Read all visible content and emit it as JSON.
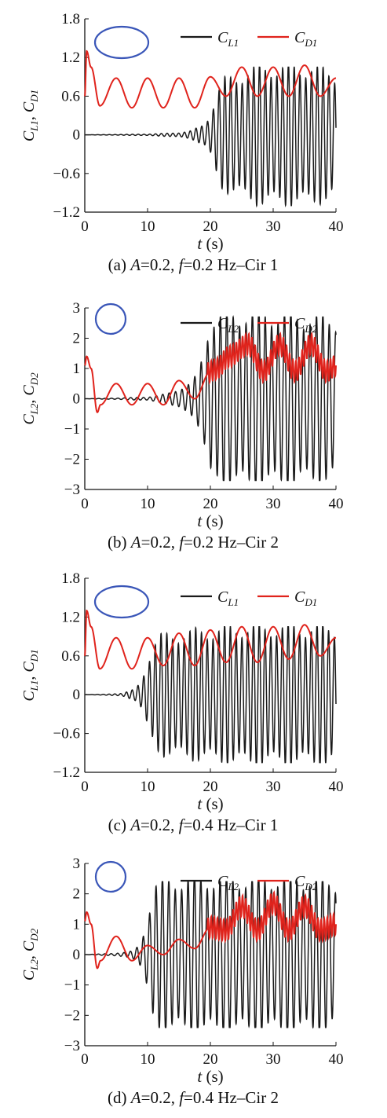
{
  "chart_data": [
    {
      "type": "line",
      "panel": "a",
      "caption": "(a)  A=0.2,  f=0.2 Hz–Cir 1",
      "caption_parts": {
        "label": "(a)",
        "a_var": "A",
        "a_val": "=0.2,",
        "f_var": "f",
        "f_val": "=0.2 Hz–Cir 1"
      },
      "xlabel": {
        "var": "t",
        "unit": " (s)"
      },
      "ylabel": {
        "lift": "C",
        "lift_sub": "L1",
        "drag": "C",
        "drag_sub": "D1"
      },
      "xlim": [
        0,
        40
      ],
      "ylim": [
        -1.2,
        1.8
      ],
      "xticks": [
        "0",
        "10",
        "20",
        "30",
        "40"
      ],
      "yticks": [
        "−1.2",
        "−0.6",
        "0",
        "0.6",
        "1.2",
        "1.8"
      ],
      "ytick_values": [
        -1.2,
        -0.6,
        0,
        0.6,
        1.2,
        1.8
      ],
      "cylinder_shape": "ellipse",
      "series": [
        {
          "name": "C",
          "name_sub": "L1",
          "color": "#1a1a1a",
          "x": [
            0,
            5,
            10,
            15,
            17,
            19,
            20,
            21,
            22,
            24,
            26,
            28,
            30,
            32,
            34,
            36,
            38,
            40
          ],
          "amplitude": [
            0,
            0.005,
            0.01,
            0.03,
            0.06,
            0.15,
            0.3,
            0.6,
            0.8,
            0.85,
            0.95,
            1.0,
            1.0,
            1.0,
            1.0,
            1.0,
            0.95,
            0.9
          ],
          "min_observed": -1.1,
          "max_observed": 1.05
        },
        {
          "name": "C",
          "name_sub": "D1",
          "color": "#e0231c",
          "x": [
            0.0,
            0.3,
            1.0,
            2.4,
            5.0,
            7.5,
            10.0,
            12.5,
            15.0,
            17.5,
            20.0,
            22.5,
            25.0,
            27.5,
            30.0,
            32.5,
            35.0,
            37.5,
            40.0
          ],
          "values": [
            0.6,
            1.3,
            1.05,
            0.45,
            0.88,
            0.42,
            0.88,
            0.42,
            0.88,
            0.42,
            0.9,
            0.6,
            1.05,
            0.6,
            1.05,
            0.6,
            1.08,
            0.6,
            0.88
          ]
        }
      ]
    },
    {
      "type": "line",
      "panel": "b",
      "caption": "(b)  A=0.2,  f=0.2 Hz–Cir 2",
      "caption_parts": {
        "label": "(b)",
        "a_var": "A",
        "a_val": "=0.2,",
        "f_var": "f",
        "f_val": "=0.2 Hz–Cir 2"
      },
      "xlabel": {
        "var": "t",
        "unit": " (s)"
      },
      "ylabel": {
        "lift": "C",
        "lift_sub": "L2",
        "drag": "C",
        "drag_sub": "D2"
      },
      "xlim": [
        0,
        40
      ],
      "ylim": [
        -3,
        3
      ],
      "xticks": [
        "0",
        "10",
        "20",
        "30",
        "40"
      ],
      "yticks": [
        "−3",
        "−2",
        "−1",
        "0",
        "1",
        "2",
        "3"
      ],
      "ytick_values": [
        -3,
        -2,
        -1,
        0,
        1,
        2,
        3
      ],
      "cylinder_shape": "circle",
      "series": [
        {
          "name": "C",
          "name_sub": "L2",
          "color": "#1a1a1a",
          "x": [
            0,
            5,
            10,
            13,
            15,
            17,
            18,
            19,
            20,
            22,
            25,
            30,
            35,
            40
          ],
          "amplitude": [
            0,
            0.02,
            0.05,
            0.15,
            0.3,
            0.5,
            0.8,
            1.5,
            2.6,
            2.6,
            2.7,
            2.7,
            2.6,
            2.5
          ],
          "min_observed": -2.7,
          "max_observed": 2.7
        },
        {
          "name": "C",
          "name_sub": "D2",
          "color": "#e0231c",
          "x": [
            0.0,
            0.3,
            1.0,
            2.0,
            2.5,
            5.0,
            7.5,
            10.0,
            12.5,
            15.0,
            17.5,
            20.0,
            21.0,
            23.0,
            26.0,
            28.5,
            31.0,
            33.5,
            36.0,
            38.5,
            40.0
          ],
          "values": [
            1.1,
            1.4,
            1.0,
            -0.45,
            -0.2,
            0.5,
            -0.2,
            0.5,
            -0.2,
            0.6,
            0.0,
            0.9,
            1.0,
            1.4,
            1.8,
            0.9,
            1.8,
            0.9,
            1.8,
            0.9,
            1.1
          ]
        }
      ]
    },
    {
      "type": "line",
      "panel": "c",
      "caption": "(c)  A=0.2,  f=0.4 Hz–Cir 1",
      "caption_parts": {
        "label": "(c)",
        "a_var": "A",
        "a_val": "=0.2,",
        "f_var": "f",
        "f_val": "=0.4 Hz–Cir 1"
      },
      "xlabel": {
        "var": "t",
        "unit": " (s)"
      },
      "ylabel": {
        "lift": "C",
        "lift_sub": "L1",
        "drag": "C",
        "drag_sub": "D1"
      },
      "xlim": [
        0,
        40
      ],
      "ylim": [
        -1.2,
        1.8
      ],
      "xticks": [
        "0",
        "10",
        "20",
        "30",
        "40"
      ],
      "yticks": [
        "−1.2",
        "−0.6",
        "0",
        "0.6",
        "1.2",
        "1.8"
      ],
      "ytick_values": [
        -1.2,
        -0.6,
        0,
        0.6,
        1.2,
        1.8
      ],
      "cylinder_shape": "ellipse",
      "series": [
        {
          "name": "C",
          "name_sub": "L1",
          "color": "#1a1a1a",
          "x": [
            0,
            3,
            6,
            8,
            9,
            10,
            11,
            12,
            15,
            20,
            25,
            30,
            35,
            40
          ],
          "amplitude": [
            0,
            0.005,
            0.02,
            0.08,
            0.2,
            0.5,
            0.75,
            0.85,
            0.9,
            0.95,
            1.0,
            1.0,
            1.0,
            1.0
          ],
          "min_observed": -1.05,
          "max_observed": 1.05
        },
        {
          "name": "C",
          "name_sub": "D1",
          "color": "#e0231c",
          "x": [
            0.0,
            0.3,
            1.0,
            2.4,
            5.0,
            7.5,
            10.0,
            12.5,
            15.0,
            17.5,
            20.0,
            22.5,
            25.0,
            27.5,
            30.0,
            32.5,
            35.0,
            37.5,
            40.0
          ],
          "values": [
            0.6,
            1.3,
            1.05,
            0.4,
            0.88,
            0.4,
            0.88,
            0.45,
            0.95,
            0.45,
            1.0,
            0.5,
            1.05,
            0.5,
            1.05,
            0.55,
            1.08,
            0.6,
            0.88
          ]
        }
      ]
    },
    {
      "type": "line",
      "panel": "d",
      "caption": "(d)  A=0.2,  f=0.4 Hz–Cir 2",
      "caption_parts": {
        "label": "(d)",
        "a_var": "A",
        "a_val": "=0.2,",
        "f_var": "f",
        "f_val": "=0.4 Hz–Cir 2"
      },
      "xlabel": {
        "var": "t",
        "unit": " (s)"
      },
      "ylabel": {
        "lift": "C",
        "lift_sub": "L2",
        "drag": "C",
        "drag_sub": "D2"
      },
      "xlim": [
        0,
        40
      ],
      "ylim": [
        -3,
        3
      ],
      "xticks": [
        "0",
        "10",
        "20",
        "30",
        "40"
      ],
      "yticks": [
        "−3",
        "−2",
        "−1",
        "0",
        "1",
        "2",
        "3"
      ],
      "ytick_values": [
        -3,
        -2,
        -1,
        0,
        1,
        2,
        3
      ],
      "cylinder_shape": "circle",
      "series": [
        {
          "name": "C",
          "name_sub": "L2",
          "color": "#1a1a1a",
          "x": [
            0,
            4,
            7,
            8,
            9,
            10,
            11,
            13,
            16,
            20,
            25,
            30,
            35,
            40
          ],
          "amplitude": [
            0,
            0.03,
            0.08,
            0.15,
            0.4,
            1.2,
            2.2,
            2.3,
            2.4,
            2.4,
            2.4,
            2.4,
            2.4,
            2.3
          ],
          "min_observed": -2.4,
          "max_observed": 2.4
        },
        {
          "name": "C",
          "name_sub": "D2",
          "color": "#e0231c",
          "x": [
            0.0,
            0.3,
            1.0,
            2.0,
            2.5,
            5.0,
            7.5,
            10.0,
            12.5,
            15.0,
            17.5,
            20.0,
            22.5,
            25.0,
            27.5,
            30.0,
            32.5,
            35.0,
            37.5,
            40.0
          ],
          "values": [
            1.1,
            1.4,
            1.0,
            -0.45,
            -0.2,
            0.6,
            -0.2,
            0.3,
            0.0,
            0.5,
            0.2,
            0.9,
            0.8,
            1.6,
            0.8,
            1.7,
            0.8,
            1.6,
            0.8,
            1.0
          ]
        }
      ]
    }
  ]
}
